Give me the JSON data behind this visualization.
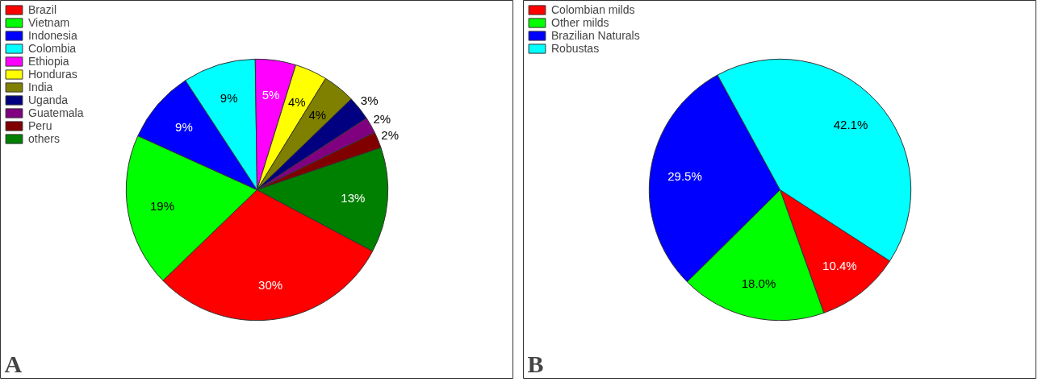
{
  "chart_data": [
    {
      "type": "pie",
      "annotations": [
        "A"
      ],
      "legend": "top left",
      "categories": [
        "Brazil",
        "Vietnam",
        "Indonesia",
        "Colombia",
        "Ethiopia",
        "Honduras",
        "India",
        "Uganda",
        "Guatemala",
        "Peru",
        "others"
      ],
      "values": [
        30,
        19,
        9,
        9,
        5,
        4,
        4,
        3,
        2,
        2,
        13
      ],
      "value_labels": [
        "30%",
        "19%",
        "9%",
        "9%",
        "5%",
        "4%",
        "4%",
        "3%",
        "2%",
        "2%",
        "13%"
      ],
      "colors": [
        "#ff0000",
        "#00ff00",
        "#0000ff",
        "#00ffff",
        "#ff00ff",
        "#ffff00",
        "#808000",
        "#000080",
        "#800080",
        "#800000",
        "#008000"
      ]
    },
    {
      "type": "pie",
      "annotations": [
        "B"
      ],
      "legend": "top left",
      "categories": [
        "Colombian milds",
        "Other milds",
        "Brazilian Naturals",
        "Robustas"
      ],
      "values": [
        10.4,
        18.0,
        29.5,
        42.1
      ],
      "value_labels": [
        "10.4%",
        "18.0%",
        "29.5%",
        "42.1%"
      ],
      "colors": [
        "#ff0000",
        "#00ff00",
        "#0000ff",
        "#00ffff"
      ]
    }
  ]
}
